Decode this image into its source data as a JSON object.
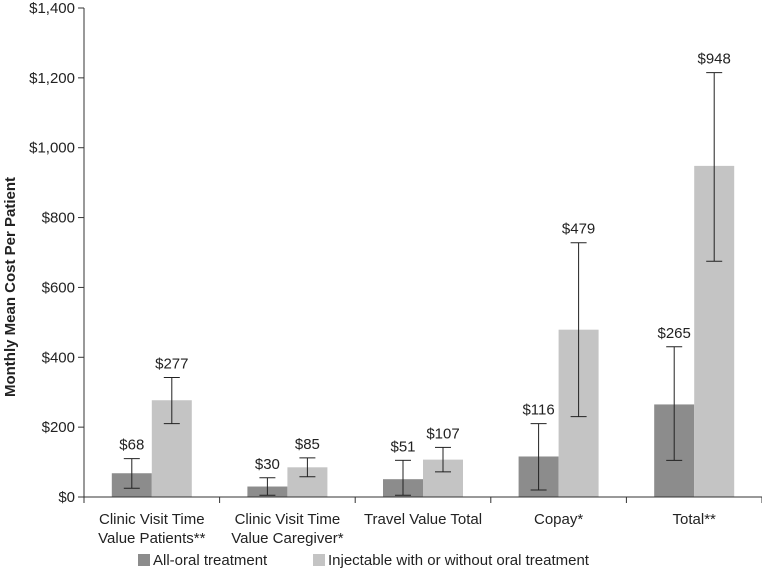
{
  "chart_data": {
    "type": "bar",
    "ylabel": "Monthly Mean Cost Per Patient",
    "xlabel": "",
    "ylim": [
      0,
      1400
    ],
    "yticks": [
      0,
      200,
      400,
      600,
      800,
      1000,
      1200,
      1400
    ],
    "ytick_labels": [
      "$0",
      "$200",
      "$400",
      "$600",
      "$800",
      "$1,000",
      "$1,200",
      "$1,400"
    ],
    "categories": [
      [
        "Clinic Visit Time",
        "Value Patients**"
      ],
      [
        "Clinic Visit Time",
        "Value Caregiver*"
      ],
      [
        "Travel Value Total"
      ],
      [
        "Copay*"
      ],
      [
        "Total**"
      ]
    ],
    "series": [
      {
        "name": "All-oral treatment",
        "color": "#8c8c8c",
        "values": [
          68,
          30,
          51,
          116,
          265
        ],
        "labels": [
          "$68",
          "$30",
          "$51",
          "$116",
          "$265"
        ],
        "err_low": [
          25,
          5,
          5,
          20,
          105
        ],
        "err_high": [
          110,
          55,
          105,
          210,
          430
        ]
      },
      {
        "name": "Injectable with or without oral treatment",
        "color": "#c4c4c4",
        "values": [
          277,
          85,
          107,
          479,
          948
        ],
        "labels": [
          "$277",
          "$85",
          "$107",
          "$479",
          "$948"
        ],
        "err_low": [
          210,
          58,
          72,
          230,
          675
        ],
        "err_high": [
          342,
          112,
          142,
          728,
          1215
        ]
      }
    ],
    "legend_position": "bottom",
    "grid": false
  }
}
